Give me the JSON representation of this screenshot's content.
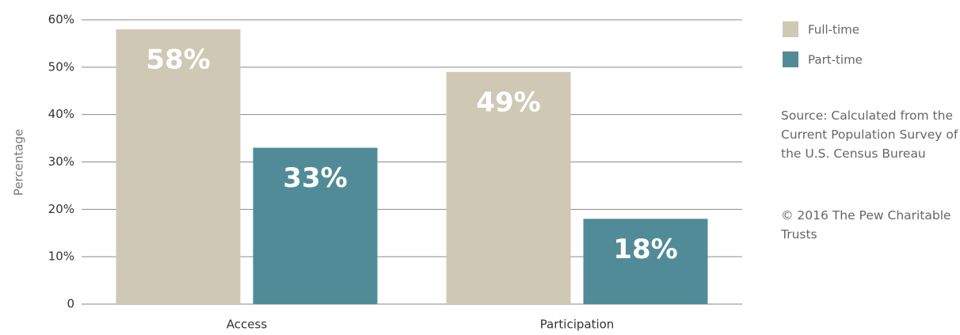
{
  "chart_data": {
    "type": "bar",
    "categories": [
      "Access",
      "Participation"
    ],
    "series": [
      {
        "name": "Full-time",
        "color": "#cfc8b4",
        "values": [
          58,
          49
        ],
        "value_labels": [
          "58%",
          "49%"
        ]
      },
      {
        "name": "Part-time",
        "color": "#528b98",
        "values": [
          33,
          18
        ],
        "value_labels": [
          "33%",
          "18%"
        ]
      }
    ],
    "ylabel": "Percentage",
    "ylim": [
      0,
      60
    ],
    "yticks": [
      0,
      {
        "value": 10,
        "label": "10%"
      },
      {
        "value": 20,
        "label": "20%"
      },
      {
        "value": 30,
        "label": "30%"
      },
      {
        "value": 40,
        "label": "40%"
      },
      {
        "value": 50,
        "label": "50%"
      },
      {
        "value": 60,
        "label": "60%"
      }
    ],
    "grid": true,
    "legend": "upper right",
    "notes": [
      "Source: Calculated from the Current Population Survey of the U.S. Census Bureau",
      "© 2016 The Pew Charitable Trusts"
    ]
  }
}
